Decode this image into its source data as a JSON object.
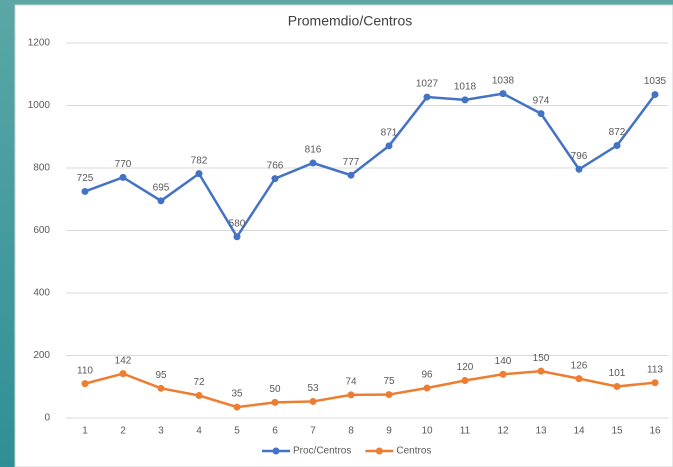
{
  "chart_data": {
    "type": "line",
    "title": "Promemdio/Centros",
    "categories": [
      "1",
      "2",
      "3",
      "4",
      "5",
      "6",
      "7",
      "8",
      "9",
      "10",
      "11",
      "12",
      "13",
      "14",
      "15",
      "16"
    ],
    "series": [
      {
        "name": "Proc/Centros",
        "color": "#4472c4",
        "values": [
          725,
          770,
          695,
          782,
          580,
          766,
          816,
          777,
          871,
          1027,
          1018,
          1038,
          974,
          796,
          872,
          1035
        ]
      },
      {
        "name": "Centros",
        "color": "#ed7d31",
        "values": [
          110,
          142,
          95,
          72,
          35,
          50,
          53,
          74,
          75,
          96,
          120,
          140,
          150,
          126,
          101,
          113
        ]
      }
    ],
    "ylim": [
      0,
      1200
    ],
    "yticks": [
      0,
      200,
      400,
      600,
      800,
      1000,
      1200
    ],
    "grid": true,
    "legend": "bottom"
  }
}
